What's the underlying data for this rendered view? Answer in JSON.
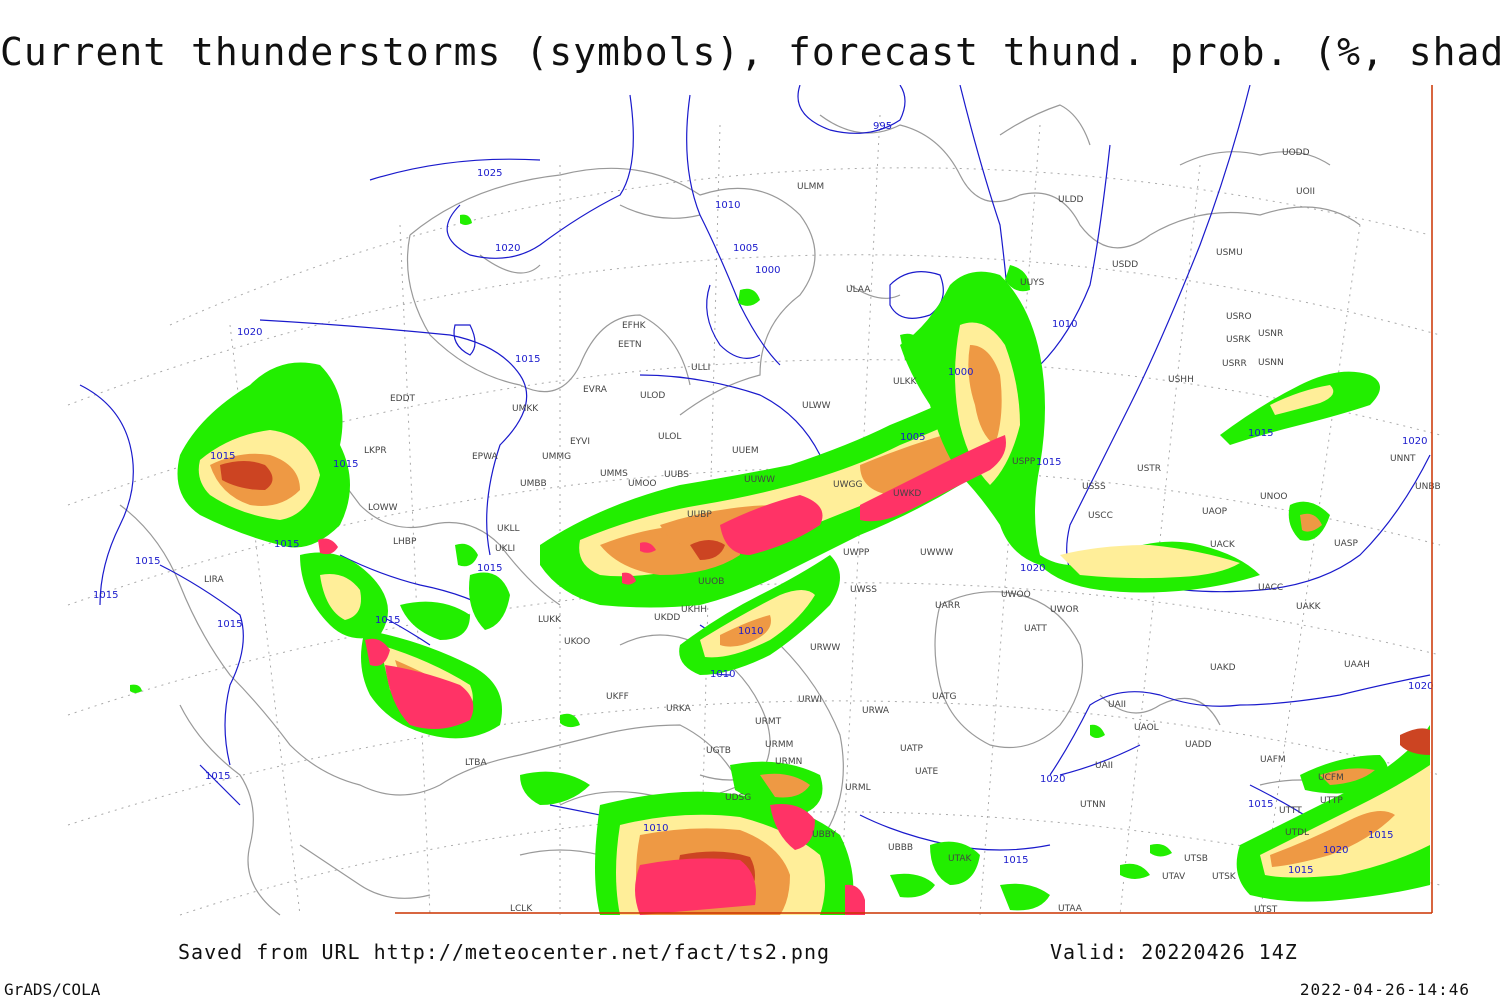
{
  "title": "Current thunderstorms (symbols), forecast thund. prob. (%, shaded)",
  "footer": {
    "saved_from": "Saved from URL http://meteocenter.net/fact/ts2.png",
    "valid": "Valid: 20220426 14Z",
    "software": "GrADS/COLA",
    "timestamp": "2022-04-26-14:46"
  },
  "colors": {
    "isobar": "#1a1acc",
    "coastline": "#999999",
    "graticule": "#aaaaaa",
    "prob_low": "#22ee00",
    "prob_mid": "#ffee99",
    "prob_high": "#ee9944",
    "prob_very_high": "#cc4422",
    "storm_symbols": "#ff3366",
    "border": "#cc3300"
  },
  "isobar_labels": [
    "995",
    "1000",
    "1005",
    "1010",
    "1015",
    "1020",
    "1025"
  ],
  "stations": [
    "UODD",
    "UOII",
    "ULDD",
    "USMU",
    "USDD",
    "ULMM",
    "ULAA",
    "UUYS",
    "USRO",
    "USRK",
    "USNR",
    "USRR",
    "USNN",
    "USHH",
    "EFHK",
    "EETN",
    "ULLI",
    "ULWW",
    "ULKK",
    "EVRA",
    "UMKK",
    "ULOD",
    "ULOL",
    "UUEM",
    "EDDT",
    "EYVI",
    "UMMG",
    "LKPR",
    "EPWA",
    "UMBB",
    "UMMS",
    "UUBS",
    "UUWW",
    "UWGG",
    "UWKD",
    "USPP",
    "USSS",
    "USTR",
    "UNOO",
    "UNNT",
    "UNBB",
    "LOWW",
    "UKLL",
    "LHBP",
    "UKLI",
    "UMOO",
    "UUBP",
    "UUOB",
    "USCC",
    "UACC",
    "UASP",
    "UACK",
    "UAOP",
    "LIRA",
    "UKHH",
    "UWPP",
    "UWWW",
    "UWSS",
    "UWOO",
    "UWOR",
    "UATT",
    "UARR",
    "UAKK",
    "LUKK",
    "UKOO",
    "UKDD",
    "URWW",
    "URWA",
    "UATG",
    "UAKD",
    "UAAH",
    "UKFF",
    "URWI",
    "URMT",
    "URMM",
    "URMN",
    "URML",
    "UAII",
    "UATP",
    "UATE",
    "UTAK",
    "UTAA",
    "UTNN",
    "UTSB",
    "UTAV",
    "UTSK",
    "UTST",
    "UBBB",
    "LCLK",
    "LTBA",
    "UTDL",
    "UAFM",
    "UAOL",
    "UADD",
    "UTTT",
    "URKA",
    "UGTB",
    "UDSG",
    "UBBY",
    "UTTP",
    "UCFM",
    "UAII"
  ]
}
